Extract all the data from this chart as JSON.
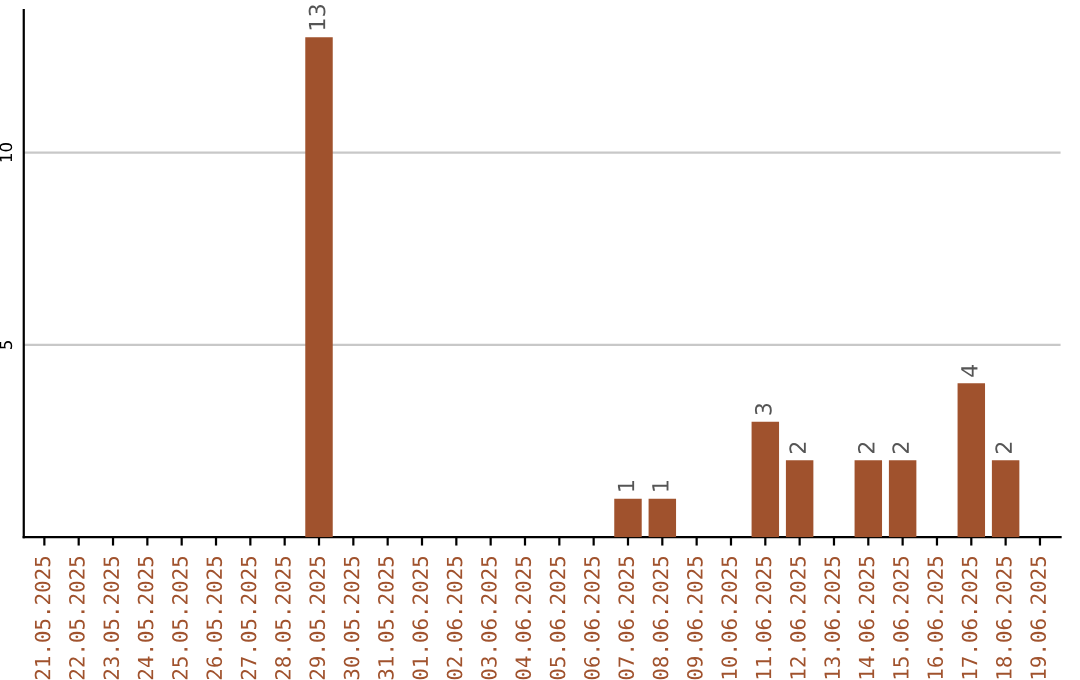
{
  "chart_data": {
    "type": "bar",
    "categories": [
      "21.05.2025",
      "22.05.2025",
      "23.05.2025",
      "24.05.2025",
      "25.05.2025",
      "26.05.2025",
      "27.05.2025",
      "28.05.2025",
      "29.05.2025",
      "30.05.2025",
      "31.05.2025",
      "01.06.2025",
      "02.06.2025",
      "03.06.2025",
      "04.06.2025",
      "05.06.2025",
      "06.06.2025",
      "07.06.2025",
      "08.06.2025",
      "09.06.2025",
      "10.06.2025",
      "11.06.2025",
      "12.06.2025",
      "13.06.2025",
      "14.06.2025",
      "15.06.2025",
      "16.06.2025",
      "17.06.2025",
      "18.06.2025",
      "19.06.2025"
    ],
    "values": [
      0,
      0,
      0,
      0,
      0,
      0,
      0,
      0,
      13,
      0,
      0,
      0,
      0,
      0,
      0,
      0,
      0,
      1,
      1,
      0,
      0,
      3,
      2,
      0,
      2,
      2,
      0,
      4,
      2,
      0
    ],
    "value_labels": [
      null,
      null,
      null,
      null,
      null,
      null,
      null,
      null,
      "13",
      null,
      null,
      null,
      null,
      null,
      null,
      null,
      null,
      "1",
      "1",
      null,
      null,
      "3",
      "2",
      null,
      "2",
      "2",
      null,
      "4",
      "2",
      null
    ],
    "color": "#a0522d",
    "ylim": [
      0,
      13.7
    ],
    "yticks": [
      5,
      10
    ],
    "grid": "y"
  }
}
